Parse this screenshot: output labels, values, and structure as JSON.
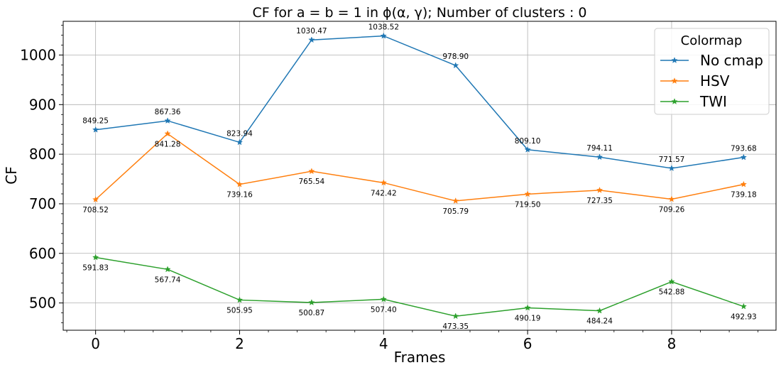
{
  "chart_data": {
    "type": "line",
    "title": "CF for a = b = 1 in ϕ(α, γ); Number of clusters : 0",
    "xlabel": "Frames",
    "ylabel": "CF",
    "x": [
      0,
      1,
      2,
      3,
      4,
      5,
      6,
      7,
      8,
      9
    ],
    "xlim": [
      -0.45,
      9.45
    ],
    "ylim": [
      445,
      1068
    ],
    "xticks": [
      0,
      2,
      4,
      6,
      8
    ],
    "yticks": [
      500,
      600,
      700,
      800,
      900,
      1000
    ],
    "grid": true,
    "legend_title": "Colormap",
    "legend_position": "upper-right",
    "series": [
      {
        "name": "No cmap",
        "color": "#1f77b4",
        "values": [
          849.25,
          867.36,
          823.94,
          1030.47,
          1038.52,
          978.9,
          809.1,
          794.11,
          771.57,
          793.68
        ],
        "labels": [
          "849.25",
          "867.36",
          "823.94",
          "1030.47",
          "1038.52",
          "978.90",
          "809.10",
          "794.11",
          "771.57",
          "793.68"
        ],
        "label_position": "above"
      },
      {
        "name": "HSV",
        "color": "#ff7f0e",
        "values": [
          708.52,
          841.28,
          739.16,
          765.54,
          742.42,
          705.79,
          719.5,
          727.35,
          709.26,
          739.18
        ],
        "labels": [
          "708.52",
          "841.28",
          "739.16",
          "765.54",
          "742.42",
          "705.79",
          "719.50",
          "727.35",
          "709.26",
          "739.18"
        ],
        "label_position": "below"
      },
      {
        "name": "TWI",
        "color": "#2ca02c",
        "values": [
          591.83,
          567.74,
          505.95,
          500.87,
          507.4,
          473.35,
          490.19,
          484.24,
          542.88,
          492.93
        ],
        "labels": [
          "591.83",
          "567.74",
          "505.95",
          "500.87",
          "507.40",
          "473.35",
          "490.19",
          "484.24",
          "542.88",
          "492.93"
        ],
        "label_position": "below"
      }
    ]
  }
}
